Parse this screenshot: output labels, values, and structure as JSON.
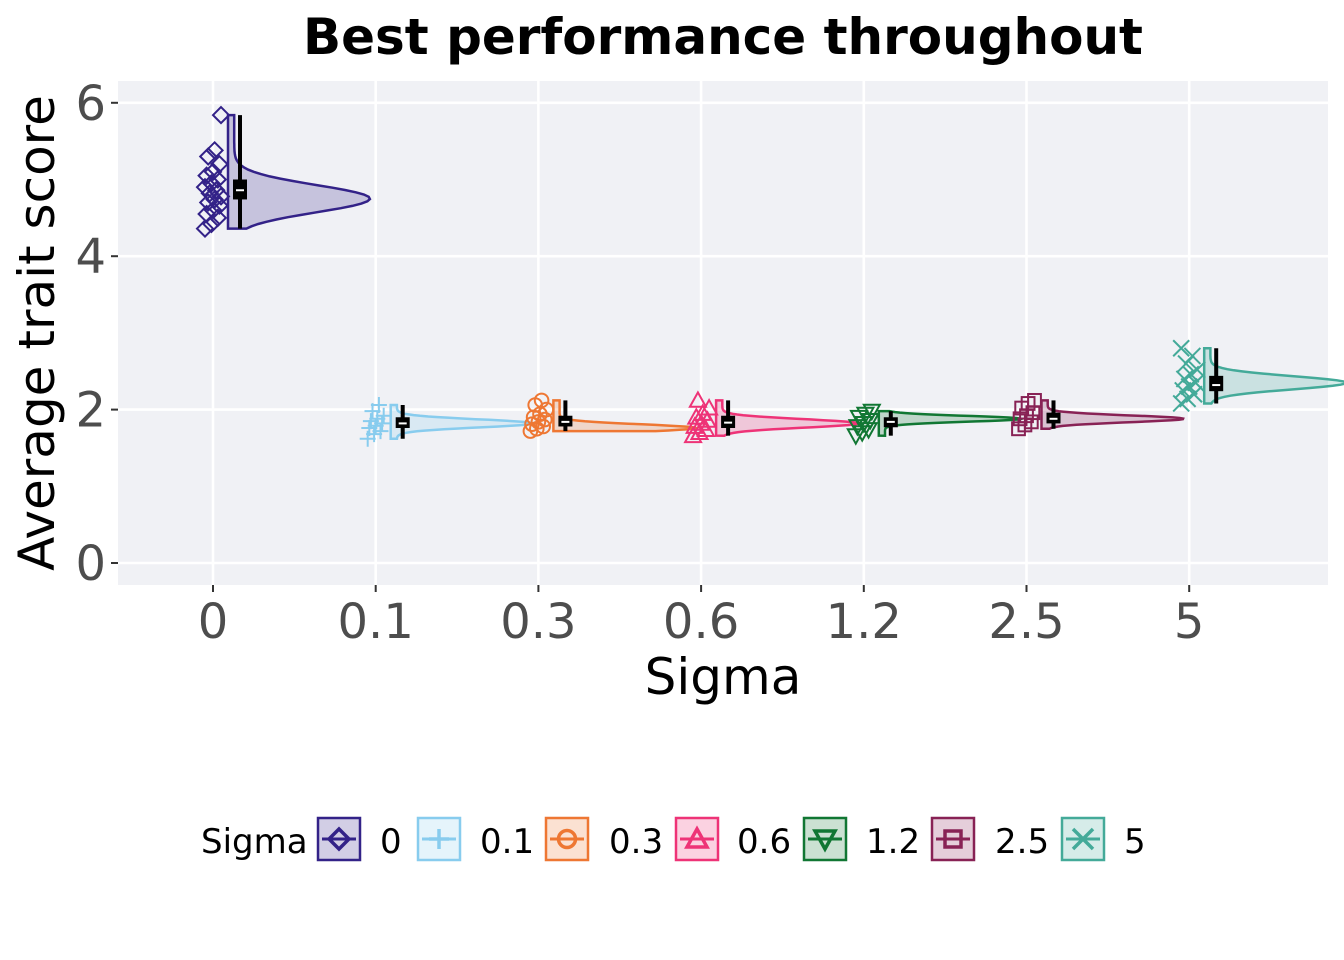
{
  "chart_data": {
    "type": "raincloud",
    "title": "Best performance throughout",
    "xlabel": "Sigma",
    "ylabel": "Average trait score",
    "categories": [
      "0",
      "0.1",
      "0.3",
      "0.6",
      "1.2",
      "2.5",
      "5"
    ],
    "yticks": [
      "0",
      "2",
      "4",
      "6"
    ],
    "ylim": [
      -0.25,
      6.3
    ],
    "grid": true,
    "legend": {
      "title": "Sigma",
      "position": "bottom",
      "entries": [
        "0",
        "0.1",
        "0.3",
        "0.6",
        "1.2",
        "2.5",
        "5"
      ]
    },
    "series": [
      {
        "name": "0",
        "color": "#332288",
        "marker": "diamond",
        "min": 4.36,
        "q1": 4.74,
        "median": 4.86,
        "q3": 5.0,
        "max": 5.84,
        "peak": 4.75,
        "points": [
          4.36,
          4.42,
          4.5,
          4.55,
          4.6,
          4.66,
          4.7,
          4.74,
          4.78,
          4.82,
          4.86,
          4.9,
          4.95,
          5.0,
          5.05,
          5.1,
          5.2,
          5.3,
          5.38,
          5.84
        ]
      },
      {
        "name": "0.1",
        "color": "#88ccee",
        "marker": "plus",
        "min": 1.62,
        "q1": 1.76,
        "median": 1.82,
        "q3": 1.9,
        "max": 2.06,
        "peak": 1.82,
        "points": [
          1.62,
          1.68,
          1.72,
          1.76,
          1.79,
          1.82,
          1.85,
          1.88,
          1.92,
          1.98,
          2.06
        ]
      },
      {
        "name": "0.3",
        "color": "#ee7733",
        "marker": "circle",
        "min": 1.72,
        "q1": 1.78,
        "median": 1.84,
        "q3": 1.92,
        "max": 2.12,
        "peak": 1.76,
        "points": [
          1.72,
          1.75,
          1.78,
          1.81,
          1.84,
          1.87,
          1.9,
          1.94,
          2.0,
          2.06,
          2.12
        ]
      },
      {
        "name": "0.6",
        "color": "#ee3377",
        "marker": "triangle-up",
        "min": 1.66,
        "q1": 1.76,
        "median": 1.83,
        "q3": 1.92,
        "max": 2.12,
        "peak": 1.82,
        "points": [
          1.66,
          1.7,
          1.74,
          1.78,
          1.82,
          1.86,
          1.9,
          1.95,
          2.02,
          2.12
        ]
      },
      {
        "name": "1.2",
        "color": "#117733",
        "marker": "triangle-down",
        "min": 1.66,
        "q1": 1.78,
        "median": 1.84,
        "q3": 1.9,
        "max": 1.98,
        "peak": 1.88,
        "points": [
          1.66,
          1.7,
          1.74,
          1.78,
          1.82,
          1.86,
          1.9,
          1.94,
          1.98
        ]
      },
      {
        "name": "2.5",
        "color": "#882255",
        "marker": "square",
        "min": 1.75,
        "q1": 1.82,
        "median": 1.88,
        "q3": 1.96,
        "max": 2.12,
        "peak": 1.88,
        "points": [
          1.75,
          1.8,
          1.84,
          1.88,
          1.92,
          1.96,
          2.02,
          2.08,
          2.12
        ]
      },
      {
        "name": "5",
        "color": "#44aa99",
        "marker": "x",
        "min": 2.08,
        "q1": 2.24,
        "median": 2.32,
        "q3": 2.44,
        "max": 2.8,
        "peak": 2.35,
        "points": [
          2.08,
          2.14,
          2.2,
          2.25,
          2.3,
          2.35,
          2.4,
          2.46,
          2.52,
          2.6,
          2.7,
          2.8
        ]
      }
    ]
  }
}
